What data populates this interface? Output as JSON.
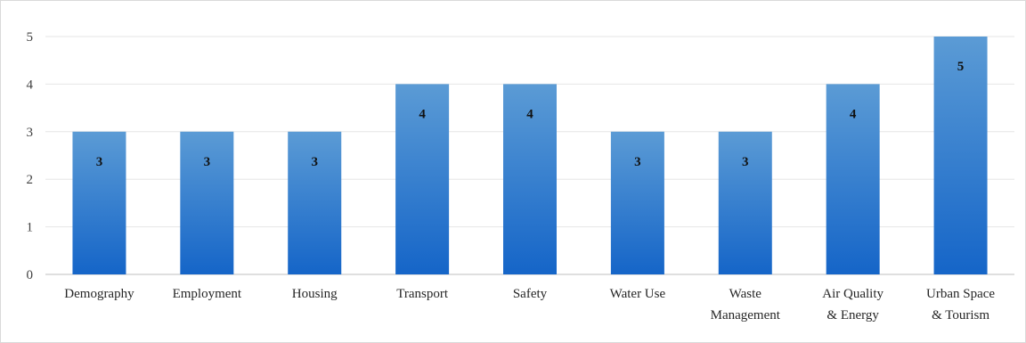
{
  "chart_data": {
    "type": "bar",
    "categories": [
      [
        "Demography"
      ],
      [
        "Employment"
      ],
      [
        "Housing"
      ],
      [
        "Transport"
      ],
      [
        "Safety"
      ],
      [
        "Water Use"
      ],
      [
        "Waste",
        "Management"
      ],
      [
        "Air Quality",
        "& Energy"
      ],
      [
        "Urban Space",
        "& Tourism"
      ]
    ],
    "values": [
      3,
      3,
      3,
      4,
      4,
      3,
      3,
      4,
      5
    ],
    "ylim": [
      0,
      5
    ],
    "yticks": [
      0,
      1,
      2,
      3,
      4,
      5
    ],
    "grid": true,
    "legend": "none",
    "title": "",
    "xlabel": "",
    "ylabel": "",
    "colors": {
      "bar_top": "#5b9bd5",
      "bar_bottom": "#1565c8",
      "grid": "#e6e6e6"
    }
  }
}
